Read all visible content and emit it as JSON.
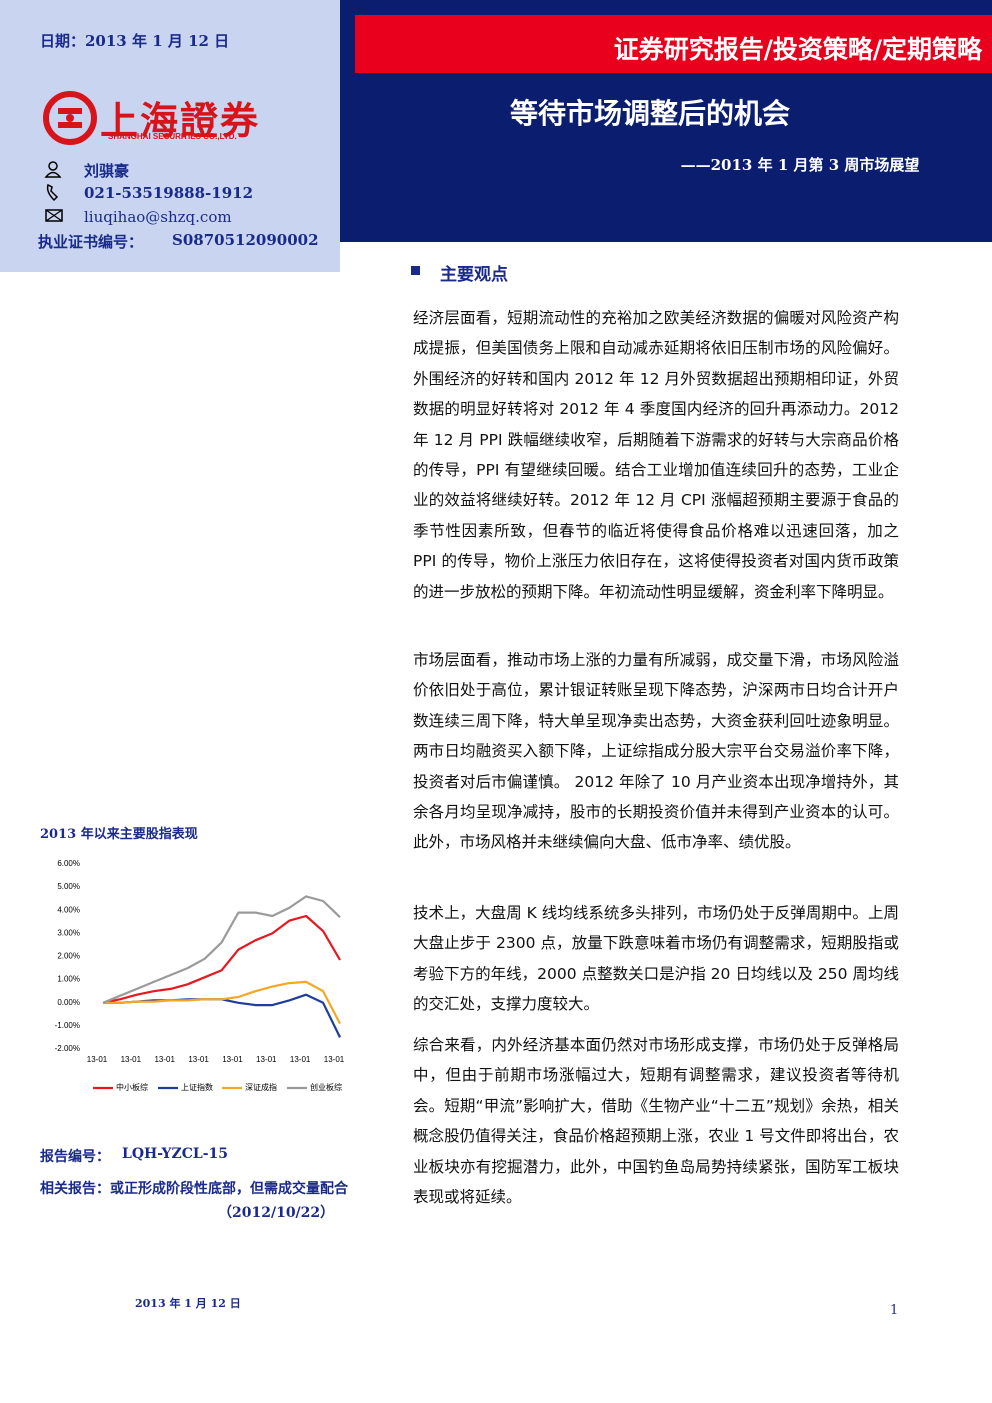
{
  "header": {
    "date": "日期：2013 年 1 月 12 日",
    "banner": "证券研究报告/投资策略/定期策略",
    "title": "等待市场调整后的机会",
    "subtitle": "——2013 年 1 月第 3 周市场展望"
  },
  "logo": {
    "name": "上海證券",
    "english": "SHANGHAI SECURITIES CO.,LTD."
  },
  "analyst": {
    "name": "刘骐豪",
    "phone": "021-53519888-1912",
    "email": "liuqihao@shzq.com",
    "cert_label": "执业证书编号：",
    "cert": "S0870512090002"
  },
  "section": "主要观点",
  "paragraphs": [
    "经济层面看，短期流动性的充裕加之欧美经济数据的偏暖对风险资产构成提振，但美国债务上限和自动减赤延期将依旧压制市场的风险偏好。外围经济的好转和国内 2012 年 12 月外贸数据超出预期相印证，外贸数据的明显好转将对 2012 年 4 季度国内经济的回升再添动力。2012 年 12 月 PPI 跌幅继续收窄，后期随着下游需求的好转与大宗商品价格的传导，PPI 有望继续回暖。结合工业增加值连续回升的态势，工业企业的效益将继续好转。2012 年 12 月 CPI 涨幅超预期主要源于食品的季节性因素所致，但春节的临近将使得食品价格难以迅速回落，加之 PPI 的传导，物价上涨压力依旧存在，这将使得投资者对国内货币政策的进一步放松的预期下降。年初流动性明显缓解，资金利率下降明显。",
    "市场层面看，推动市场上涨的力量有所减弱，成交量下滑，市场风险溢价依旧处于高位，累计银证转账呈现下降态势，沪深两市日均合计开户数连续三周下降，特大单呈现净卖出态势，大资金获利回吐迹象明显。两市日均融资买入额下降，上证综指成分股大宗平台交易溢价率下降，投资者对后市偏谨慎。 2012 年除了 10 月产业资本出现净增持外，其余各月均呈现净减持，股市的长期投资价值并未得到产业资本的认可。此外，市场风格并未继续偏向大盘、低市净率、绩优股。",
    "技术上，大盘周 K 线均线系统多头排列，市场仍处于反弹周期中。上周大盘止步于 2300 点，放量下跌意味着市场仍有调整需求，短期股指或考验下方的年线，2000 点整数关口是沪指 20 日均线以及 250 周均线的交汇处，支撑力度较大。",
    "综合来看，内外经济基本面仍然对市场形成支撑，市场仍处于反弹格局中，但由于前期市场涨幅过大，短期有调整需求，建议投资者等待机会。短期“甲流”影响扩大，借助《生物产业“十二五”规划》余热，相关概念股仍值得关注，食品价格超预期上涨，农业 1 号文件即将出台，农业板块亦有挖掘潜力，此外，中国钓鱼岛局势持续紧张，国防军工板块表现或将延续。"
  ],
  "chart_data": {
    "type": "line",
    "title": "2013 年以来主要股指表现",
    "categories": [
      "13-01",
      null,
      "13-01",
      null,
      "13-01",
      null,
      "13-01",
      null,
      "13-01",
      null,
      "13-01",
      null,
      "13-01",
      null,
      "13-01"
    ],
    "series": [
      {
        "name": "中小板综",
        "color": "#e8171f",
        "values": [
          0,
          0.15,
          0.35,
          0.5,
          0.6,
          0.8,
          1.1,
          1.4,
          2.3,
          2.7,
          3.0,
          3.55,
          3.75,
          3.1,
          1.85
        ]
      },
      {
        "name": "上证指数",
        "color": "#1f3d99",
        "values": [
          0,
          0,
          0.05,
          0.1,
          0.1,
          0.15,
          0.15,
          0.15,
          0,
          -0.1,
          -0.1,
          0.1,
          0.35,
          0,
          -1.5
        ]
      },
      {
        "name": "深证成指",
        "color": "#f5a623",
        "values": [
          0,
          0,
          0.05,
          0.05,
          0.1,
          0.1,
          0.15,
          0.15,
          0.25,
          0.5,
          0.7,
          0.85,
          0.9,
          0.5,
          -0.9
        ]
      },
      {
        "name": "创业板综",
        "color": "#9a9a9a",
        "values": [
          0,
          0.3,
          0.6,
          0.9,
          1.2,
          1.5,
          1.9,
          2.6,
          3.9,
          3.9,
          3.75,
          4.1,
          4.6,
          4.4,
          3.7
        ]
      }
    ],
    "ylim": [
      -2,
      6
    ],
    "yticks": [
      {
        "value": -2,
        "label": "-2.00%"
      },
      {
        "value": -1,
        "label": "-1.00%"
      },
      {
        "value": 0,
        "label": "0.00%"
      },
      {
        "value": 1,
        "label": "1.00%"
      },
      {
        "value": 2,
        "label": "2.00%"
      },
      {
        "value": 3,
        "label": "3.00%"
      },
      {
        "value": 4,
        "label": "4.00%"
      },
      {
        "value": 5,
        "label": "5.00%"
      },
      {
        "value": 6,
        "label": "6.00%"
      }
    ],
    "grid": false
  },
  "footer": {
    "report_no_label": "报告编号：",
    "report_no": "LQH-YZCL-15",
    "related": "相关报告：或正形成阶段性底部，但需成交量配合",
    "related_date": "（2012/10/22）",
    "date": "2013 年 1 月 12 日",
    "page": "1"
  }
}
